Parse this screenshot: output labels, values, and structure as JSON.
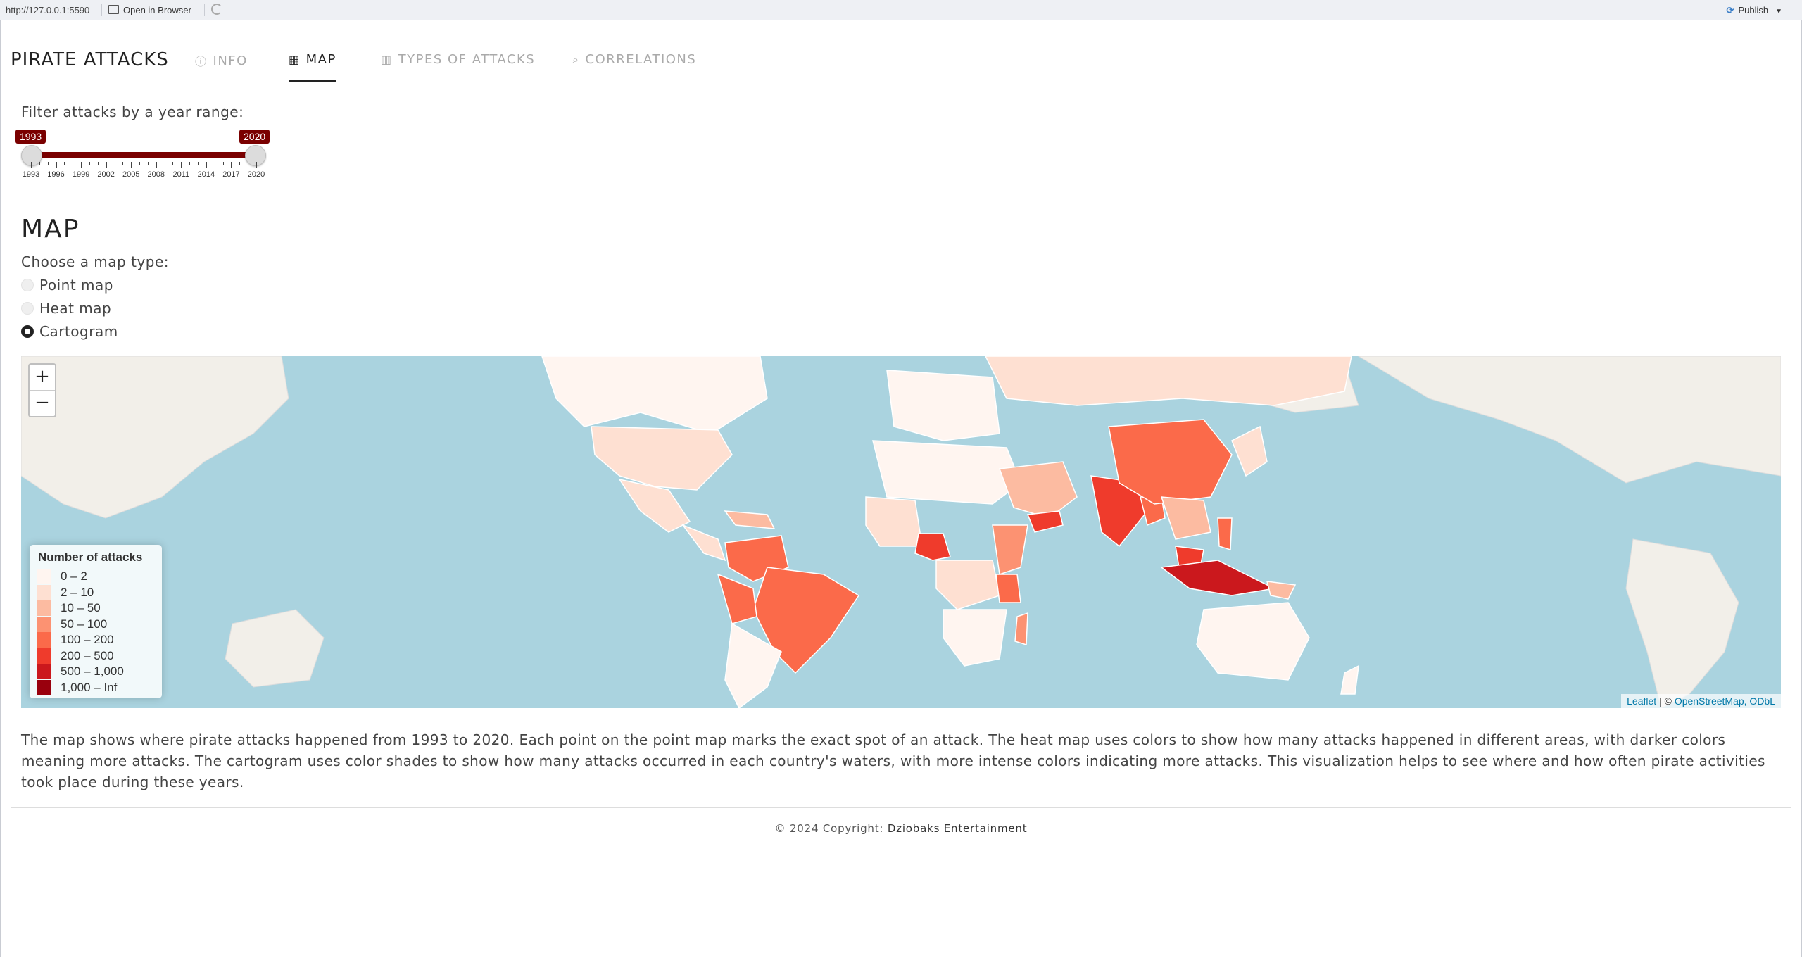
{
  "browser": {
    "url": "http://127.0.0.1:5590",
    "open_label": "Open in Browser",
    "publish_label": "Publish"
  },
  "nav": {
    "brand": "PIRATE ATTACKS",
    "tabs": [
      {
        "label": "INFO",
        "icon": "info-circle-icon",
        "active": false
      },
      {
        "label": "MAP",
        "icon": "map-icon",
        "active": true
      },
      {
        "label": "TYPES OF ATTACKS",
        "icon": "bar-chart-icon",
        "active": false
      },
      {
        "label": "CORRELATIONS",
        "icon": "search-icon",
        "active": false
      }
    ]
  },
  "filter": {
    "label": "Filter attacks by a year range:",
    "min": 1993,
    "max": 2020,
    "from": "1993",
    "to": "2020",
    "accent": "#7a0000",
    "tick_labels": [
      "1993",
      "1996",
      "1999",
      "2002",
      "2005",
      "2008",
      "2011",
      "2014",
      "2017",
      "2020"
    ]
  },
  "map_section": {
    "title": "MAP",
    "choose_label": "Choose a map type:",
    "options": [
      "Point map",
      "Heat map",
      "Cartogram"
    ],
    "selected": "Cartogram"
  },
  "map": {
    "zoom_in": "+",
    "zoom_out": "−",
    "water_color": "#aad3df",
    "land_color": "#f2efe9",
    "legend": {
      "title": "Number of attacks",
      "items": [
        {
          "label": "0 – 2",
          "color": "#fff5f0"
        },
        {
          "label": "2 – 10",
          "color": "#fee0d2"
        },
        {
          "label": "10 – 50",
          "color": "#fcbba1"
        },
        {
          "label": "50 – 100",
          "color": "#fc9272"
        },
        {
          "label": "100 – 200",
          "color": "#fb6a4a"
        },
        {
          "label": "200 – 500",
          "color": "#ef3b2c"
        },
        {
          "label": "500 – 1,000",
          "color": "#cb181d"
        },
        {
          "label": "1,000 – Inf",
          "color": "#99000d"
        }
      ]
    },
    "attribution": {
      "leaflet": "Leaflet",
      "sep": " | © ",
      "osm": "OpenStreetMap, ODbL"
    }
  },
  "description": "The map shows where pirate attacks happened from 1993 to 2020. Each point on the point map marks the exact spot of an attack. The heat map uses colors to show how many attacks happened in different areas, with darker colors meaning more attacks. The cartogram uses color shades to show how many attacks occurred in each country's waters, with more intense colors indicating more attacks. This visualization helps to see where and how often pirate activities took place during these years.",
  "footer": {
    "prefix": "© 2024 Copyright: ",
    "link": "Dziobaks Entertainment"
  }
}
